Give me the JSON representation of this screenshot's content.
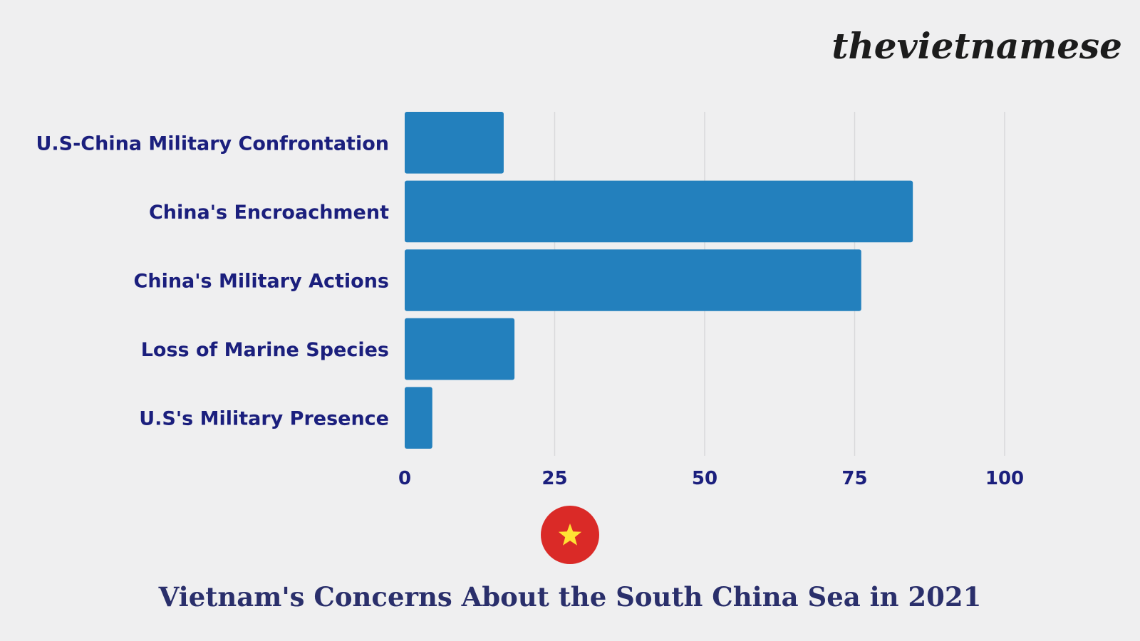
{
  "brand": {
    "logo_text": "thevietnamese"
  },
  "colors": {
    "background": "#efeff0",
    "bar": "#2380bd",
    "label_text": "#1b1f7d",
    "title_text": "#2a2f6b",
    "gridline": "#d9d9db",
    "flag_red": "#da2a27",
    "flag_star": "#ffe234"
  },
  "flag": {
    "icon": "vietnam-flag-icon"
  },
  "chart_data": {
    "type": "bar",
    "orientation": "horizontal",
    "title": "Vietnam's Concerns About the South China Sea in 2021",
    "categories": [
      "U.S-China Military Confrontation",
      "China's Encroachment",
      "China's Military Actions",
      "Loss of Marine Species",
      "U.S's Military Presence"
    ],
    "values": [
      16.5,
      84.7,
      76.1,
      18.3,
      4.6
    ],
    "xlim": [
      0,
      100
    ],
    "xticks": [
      0,
      25,
      50,
      75,
      100
    ],
    "xlabel": "",
    "ylabel": "",
    "grid": true,
    "legend": "none"
  }
}
